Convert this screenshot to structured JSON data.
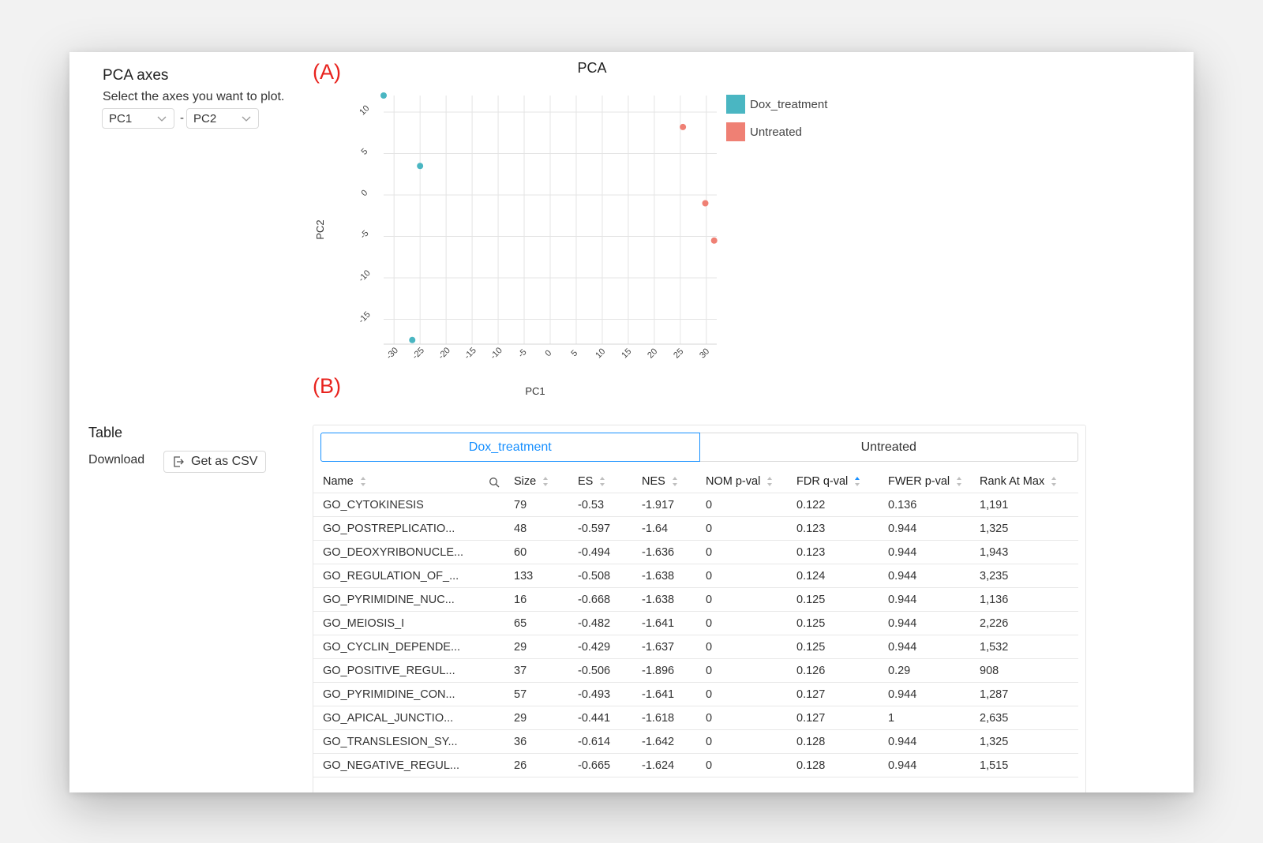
{
  "controls": {
    "title": "PCA axes",
    "help": "Select the axes you want to plot.",
    "x_axis_value": "PC1",
    "separator": "-",
    "y_axis_value": "PC2"
  },
  "figure_labels": {
    "a": "(A)",
    "b": "(B)"
  },
  "chart_data": {
    "type": "scatter",
    "title": "PCA",
    "xlabel": "PC1",
    "ylabel": "PC2",
    "xlim": [
      -32,
      32
    ],
    "ylim": [
      -18,
      12
    ],
    "xticks": [
      -30,
      -25,
      -20,
      -15,
      -10,
      -5,
      0,
      5,
      10,
      15,
      20,
      25,
      30
    ],
    "yticks": [
      -15,
      -10,
      -5,
      0,
      5,
      10
    ],
    "grid": true,
    "legend_position": "top-right",
    "series": [
      {
        "name": "Dox_treatment",
        "color": "#4ab6c2",
        "points": [
          [
            -32,
            12
          ],
          [
            -25,
            3.5
          ],
          [
            -26.5,
            -17.5
          ]
        ]
      },
      {
        "name": "Untreated",
        "color": "#ef8074",
        "points": [
          [
            25.5,
            8.2
          ],
          [
            29.8,
            -1
          ],
          [
            31.5,
            -5.5
          ]
        ]
      }
    ]
  },
  "table_section": {
    "title": "Table",
    "download_label": "Download",
    "csv_button": "Get as CSV",
    "csv_icon": "export-icon",
    "tabs": [
      "Dox_treatment",
      "Untreated"
    ],
    "active_tab": 0,
    "columns": [
      "Name",
      "Size",
      "ES",
      "NES",
      "NOM p-val",
      "FDR q-val",
      "FWER p-val",
      "Rank At Max"
    ],
    "sorted_column": "FDR q-val",
    "sort_direction": "ascending",
    "rows": [
      [
        "GO_CYTOKINESIS",
        "79",
        "-0.53",
        "-1.917",
        "0",
        "0.122",
        "0.136",
        "1,191"
      ],
      [
        "GO_POSTREPLICATIO...",
        "48",
        "-0.597",
        "-1.64",
        "0",
        "0.123",
        "0.944",
        "1,325"
      ],
      [
        "GO_DEOXYRIBONUCLE...",
        "60",
        "-0.494",
        "-1.636",
        "0",
        "0.123",
        "0.944",
        "1,943"
      ],
      [
        "GO_REGULATION_OF_...",
        "133",
        "-0.508",
        "-1.638",
        "0",
        "0.124",
        "0.944",
        "3,235"
      ],
      [
        "GO_PYRIMIDINE_NUC...",
        "16",
        "-0.668",
        "-1.638",
        "0",
        "0.125",
        "0.944",
        "1,136"
      ],
      [
        "GO_MEIOSIS_I",
        "65",
        "-0.482",
        "-1.641",
        "0",
        "0.125",
        "0.944",
        "2,226"
      ],
      [
        "GO_CYCLIN_DEPENDE...",
        "29",
        "-0.429",
        "-1.637",
        "0",
        "0.125",
        "0.944",
        "1,532"
      ],
      [
        "GO_POSITIVE_REGUL...",
        "37",
        "-0.506",
        "-1.896",
        "0",
        "0.126",
        "0.29",
        "908"
      ],
      [
        "GO_PYRIMIDINE_CON...",
        "57",
        "-0.493",
        "-1.641",
        "0",
        "0.127",
        "0.944",
        "1,287"
      ],
      [
        "GO_APICAL_JUNCTIO...",
        "29",
        "-0.441",
        "-1.618",
        "0",
        "0.127",
        "1",
        "2,635"
      ],
      [
        "GO_TRANSLESION_SY...",
        "36",
        "-0.614",
        "-1.642",
        "0",
        "0.128",
        "0.944",
        "1,325"
      ],
      [
        "GO_NEGATIVE_REGUL...",
        "26",
        "-0.665",
        "-1.624",
        "0",
        "0.128",
        "0.944",
        "1,515"
      ]
    ]
  }
}
